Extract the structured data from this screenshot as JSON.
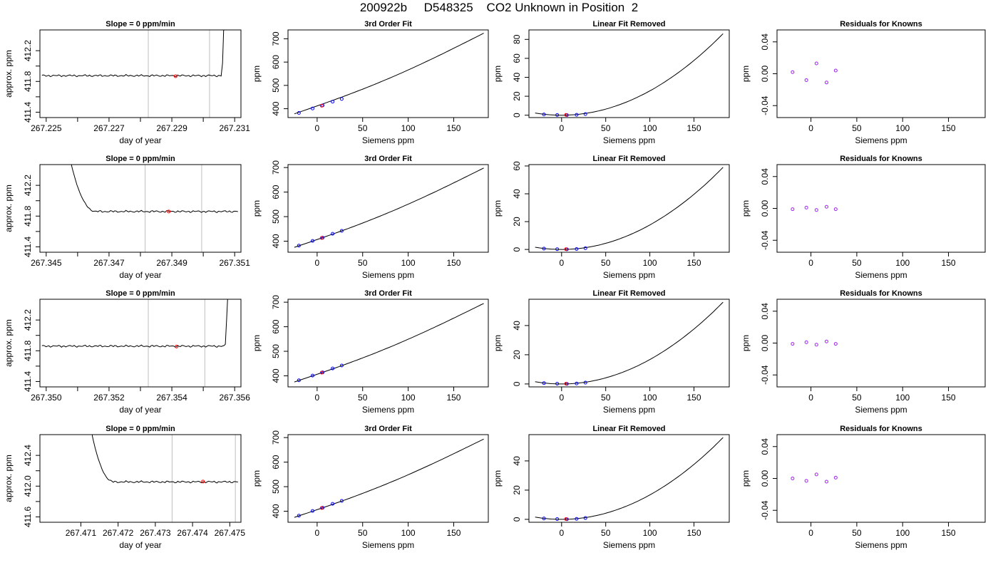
{
  "title": "200922b     D548325    CO2 Unknown in Position  2",
  "colors": {
    "known_point": "#0000ff",
    "unknown_point": "#ff0000",
    "residual_point": "#a020f0",
    "curve": "#000000",
    "marker_line": "#bebebe"
  },
  "chart_data": [
    {
      "row": 1,
      "type": "line",
      "title": "Slope =  0  ppm/min",
      "xlabel": "day of year",
      "ylabel": "approx. ppm",
      "xlim": [
        267.2248,
        267.2312
      ],
      "ylim": [
        411.33,
        412.47
      ],
      "xticks": [
        267.225,
        267.226,
        267.227,
        267.228,
        267.229,
        267.23,
        267.231
      ],
      "xticklabels": [
        "267.225",
        "",
        "267.227",
        "",
        "267.229",
        "",
        "267.231"
      ],
      "yticks": [
        411.4,
        411.6,
        411.8,
        412.0,
        412.2
      ],
      "yticklabels": [
        "411.4",
        "",
        "411.8",
        "",
        "412.2"
      ],
      "baseline": 411.875,
      "start": 411.88,
      "transition": "spike-up",
      "transition_x": [
        267.2306,
        267.2307
      ],
      "vlines": [
        267.22825,
        267.2302
      ],
      "marker": {
        "x": 267.22912,
        "y": 411.868
      }
    },
    {
      "row": 1,
      "type": "line",
      "title": "3rd Order Fit",
      "xlabel": "Siemens ppm",
      "ylabel": "ppm",
      "xlim": [
        -32,
        188
      ],
      "ylim": [
        362,
        738
      ],
      "xticks": [
        0,
        50,
        100,
        150
      ],
      "xticklabels": [
        "0",
        "50",
        "100",
        "150"
      ],
      "yticks": [
        400,
        500,
        600,
        700
      ],
      "yticklabels": [
        "400",
        "500",
        "600",
        "700"
      ],
      "curve_x": [
        -25,
        183
      ],
      "curve_y": [
        378,
        724
      ],
      "knowns": [
        {
          "x": -20,
          "y": 382
        },
        {
          "x": -5,
          "y": 401
        },
        {
          "x": 6,
          "y": 414
        },
        {
          "x": 17,
          "y": 430
        },
        {
          "x": 27,
          "y": 442
        }
      ],
      "unknown": {
        "x": 5,
        "y": 413
      }
    },
    {
      "row": 1,
      "type": "line",
      "title": "Linear Fit Removed",
      "xlabel": "Siemens ppm",
      "ylabel": "ppm",
      "xlim": [
        -37,
        190
      ],
      "ylim": [
        -2.5,
        90
      ],
      "xticks": [
        0,
        50,
        100,
        150
      ],
      "xticklabels": [
        "0",
        "50",
        "100",
        "150"
      ],
      "yticks": [
        0,
        20,
        40,
        60,
        80
      ],
      "yticklabels": [
        "0",
        "20",
        "40",
        "60",
        "80"
      ],
      "curve_x": [
        -30,
        183
      ],
      "curve_min_x": 0,
      "curve_min_y": 0,
      "curve_end_y": 86,
      "knowns": [
        {
          "x": -20,
          "y": 0.8
        },
        {
          "x": -5,
          "y": 0.2
        },
        {
          "x": 6,
          "y": 0.1
        },
        {
          "x": 17,
          "y": 0.4
        },
        {
          "x": 27,
          "y": 1.2
        }
      ],
      "unknown": {
        "x": 5,
        "y": 0.3
      }
    },
    {
      "row": 1,
      "type": "scatter",
      "title": "Residuals for Knowns",
      "xlabel": "Siemens ppm",
      "ylabel": "ppm",
      "xlim": [
        -37,
        190
      ],
      "ylim": [
        -0.055,
        0.055
      ],
      "xticks": [
        0,
        50,
        100,
        150
      ],
      "xticklabels": [
        "0",
        "50",
        "100",
        "150"
      ],
      "yticks": [
        -0.04,
        0.0,
        0.04
      ],
      "yticklabels": [
        "-0.04",
        "0.00",
        "0.04"
      ],
      "points": [
        {
          "x": -20,
          "y": 0.002
        },
        {
          "x": -5,
          "y": -0.008
        },
        {
          "x": 6,
          "y": 0.013
        },
        {
          "x": 17,
          "y": -0.011
        },
        {
          "x": 27,
          "y": 0.004
        }
      ]
    },
    {
      "row": 2,
      "type": "line",
      "title": "Slope =  0  ppm/min",
      "xlabel": "day of year",
      "ylabel": "approx. ppm",
      "xlim": [
        267.3448,
        267.3512
      ],
      "ylim": [
        411.33,
        412.47
      ],
      "xticks": [
        267.345,
        267.346,
        267.347,
        267.348,
        267.349,
        267.35,
        267.351
      ],
      "xticklabels": [
        "267.345",
        "",
        "267.347",
        "",
        "267.349",
        "",
        "267.351"
      ],
      "yticks": [
        411.4,
        411.6,
        411.8,
        412.0,
        412.2
      ],
      "yticklabels": [
        "411.4",
        "",
        "411.8",
        "",
        "412.2"
      ],
      "baseline": 411.86,
      "start": 412.47,
      "transition": "decay-down",
      "transition_x": [
        267.3458,
        267.3466
      ],
      "vlines": [
        267.34815,
        267.34995
      ],
      "marker": {
        "x": 267.3489,
        "y": 411.86
      }
    },
    {
      "row": 2,
      "type": "line",
      "title": "3rd Order Fit",
      "xlabel": "Siemens ppm",
      "ylabel": "ppm",
      "xlim": [
        -32,
        188
      ],
      "ylim": [
        355,
        712
      ],
      "xticks": [
        0,
        50,
        100,
        150
      ],
      "xticklabels": [
        "0",
        "50",
        "100",
        "150"
      ],
      "yticks": [
        400,
        500,
        600,
        700
      ],
      "yticklabels": [
        "400",
        "500",
        "600",
        "700"
      ],
      "curve_x": [
        -25,
        183
      ],
      "curve_y": [
        375,
        698
      ],
      "knowns": [
        {
          "x": -20,
          "y": 382
        },
        {
          "x": -5,
          "y": 401
        },
        {
          "x": 6,
          "y": 414
        },
        {
          "x": 17,
          "y": 430
        },
        {
          "x": 27,
          "y": 442
        }
      ],
      "unknown": {
        "x": 5,
        "y": 413
      }
    },
    {
      "row": 2,
      "type": "line",
      "title": "Linear Fit Removed",
      "xlabel": "Siemens ppm",
      "ylabel": "ppm",
      "xlim": [
        -37,
        190
      ],
      "ylim": [
        -2,
        61
      ],
      "xticks": [
        0,
        50,
        100,
        150
      ],
      "xticklabels": [
        "0",
        "50",
        "100",
        "150"
      ],
      "yticks": [
        0,
        20,
        40,
        60
      ],
      "yticklabels": [
        "0",
        "20",
        "40",
        "60"
      ],
      "curve_x": [
        -30,
        183
      ],
      "curve_min_x": 0,
      "curve_min_y": 0,
      "curve_end_y": 59,
      "knowns": [
        {
          "x": -20,
          "y": 0.6
        },
        {
          "x": -5,
          "y": 0.2
        },
        {
          "x": 6,
          "y": 0.1
        },
        {
          "x": 17,
          "y": 0.3
        },
        {
          "x": 27,
          "y": 0.9
        }
      ],
      "unknown": {
        "x": 5,
        "y": 0.2
      }
    },
    {
      "row": 2,
      "type": "scatter",
      "title": "Residuals for Knowns",
      "xlabel": "Siemens ppm",
      "ylabel": "ppm",
      "xlim": [
        -37,
        190
      ],
      "ylim": [
        -0.055,
        0.055
      ],
      "xticks": [
        0,
        50,
        100,
        150
      ],
      "xticklabels": [
        "0",
        "50",
        "100",
        "150"
      ],
      "yticks": [
        -0.04,
        0.0,
        0.04
      ],
      "yticklabels": [
        "-0.04",
        "0.00",
        "0.04"
      ],
      "points": [
        {
          "x": -20,
          "y": -0.001
        },
        {
          "x": -5,
          "y": 0.001
        },
        {
          "x": 6,
          "y": -0.002
        },
        {
          "x": 17,
          "y": 0.002
        },
        {
          "x": 27,
          "y": -0.001
        }
      ]
    },
    {
      "row": 3,
      "type": "line",
      "title": "Slope =  0  ppm/min",
      "xlabel": "day of year",
      "ylabel": "approx. ppm",
      "xlim": [
        267.3498,
        267.3562
      ],
      "ylim": [
        411.33,
        412.47
      ],
      "xticks": [
        267.35,
        267.351,
        267.352,
        267.353,
        267.354,
        267.355,
        267.356
      ],
      "xticklabels": [
        "267.350",
        "",
        "267.352",
        "",
        "267.354",
        "",
        "267.356"
      ],
      "yticks": [
        411.4,
        411.6,
        411.8,
        412.0,
        412.2
      ],
      "yticklabels": [
        "411.4",
        "",
        "411.8",
        "",
        "412.2"
      ],
      "baseline": 411.86,
      "start": 411.86,
      "transition": "spike-up",
      "transition_x": [
        267.3557,
        267.35585
      ],
      "vlines": [
        267.35325,
        267.35505
      ],
      "marker": {
        "x": 267.35415,
        "y": 411.855
      }
    },
    {
      "row": 3,
      "type": "line",
      "title": "3rd Order Fit",
      "xlabel": "Siemens ppm",
      "ylabel": "ppm",
      "xlim": [
        -32,
        188
      ],
      "ylim": [
        355,
        712
      ],
      "xticks": [
        0,
        50,
        100,
        150
      ],
      "xticklabels": [
        "0",
        "50",
        "100",
        "150"
      ],
      "yticks": [
        400,
        500,
        600,
        700
      ],
      "yticklabels": [
        "400",
        "500",
        "600",
        "700"
      ],
      "curve_x": [
        -25,
        183
      ],
      "curve_y": [
        375,
        695
      ],
      "knowns": [
        {
          "x": -20,
          "y": 382
        },
        {
          "x": -5,
          "y": 401
        },
        {
          "x": 6,
          "y": 414
        },
        {
          "x": 17,
          "y": 430
        },
        {
          "x": 27,
          "y": 442
        }
      ],
      "unknown": {
        "x": 5,
        "y": 413
      }
    },
    {
      "row": 3,
      "type": "line",
      "title": "Linear Fit Removed",
      "xlabel": "Siemens ppm",
      "ylabel": "ppm",
      "xlim": [
        -37,
        190
      ],
      "ylim": [
        -2,
        58
      ],
      "xticks": [
        0,
        50,
        100,
        150
      ],
      "xticklabels": [
        "0",
        "50",
        "100",
        "150"
      ],
      "yticks": [
        0,
        20,
        40
      ],
      "yticklabels": [
        "0",
        "20",
        "40"
      ],
      "curve_x": [
        -30,
        183
      ],
      "curve_min_x": 0,
      "curve_min_y": 0,
      "curve_end_y": 56,
      "knowns": [
        {
          "x": -20,
          "y": 0.6
        },
        {
          "x": -5,
          "y": 0.2
        },
        {
          "x": 6,
          "y": 0.1
        },
        {
          "x": 17,
          "y": 0.3
        },
        {
          "x": 27,
          "y": 0.9
        }
      ],
      "unknown": {
        "x": 5,
        "y": 0.2
      }
    },
    {
      "row": 3,
      "type": "scatter",
      "title": "Residuals for Knowns",
      "xlabel": "Siemens ppm",
      "ylabel": "ppm",
      "xlim": [
        -37,
        190
      ],
      "ylim": [
        -0.055,
        0.055
      ],
      "xticks": [
        0,
        50,
        100,
        150
      ],
      "xticklabels": [
        "0",
        "50",
        "100",
        "150"
      ],
      "yticks": [
        -0.04,
        0.0,
        0.04
      ],
      "yticklabels": [
        "-0.04",
        "0.00",
        "0.04"
      ],
      "points": [
        {
          "x": -20,
          "y": -0.001
        },
        {
          "x": -5,
          "y": 0.001
        },
        {
          "x": 6,
          "y": -0.002
        },
        {
          "x": 17,
          "y": 0.002
        },
        {
          "x": 27,
          "y": -0.001
        }
      ]
    },
    {
      "row": 4,
      "type": "line",
      "title": "Slope =  0  ppm/min",
      "xlabel": "day of year",
      "ylabel": "approx. ppm",
      "xlim": [
        267.4699,
        267.4753
      ],
      "ylim": [
        411.53,
        412.67
      ],
      "xticks": [
        267.471,
        267.472,
        267.473,
        267.474,
        267.475
      ],
      "xticklabels": [
        "267.471",
        "267.472",
        "267.473",
        "267.474",
        "267.475"
      ],
      "yticks": [
        411.6,
        411.8,
        412.0,
        412.2,
        412.4
      ],
      "yticklabels": [
        "411.6",
        "",
        "412.0",
        "",
        "412.4"
      ],
      "baseline": 412.055,
      "start": 412.67,
      "transition": "decay-down",
      "transition_x": [
        267.4713,
        267.4719
      ],
      "vlines": [
        267.47345,
        267.47515
      ],
      "marker": {
        "x": 267.47428,
        "y": 412.06
      }
    },
    {
      "row": 4,
      "type": "line",
      "title": "3rd Order Fit",
      "xlabel": "Siemens ppm",
      "ylabel": "ppm",
      "xlim": [
        -32,
        188
      ],
      "ylim": [
        355,
        712
      ],
      "xticks": [
        0,
        50,
        100,
        150
      ],
      "xticklabels": [
        "0",
        "50",
        "100",
        "150"
      ],
      "yticks": [
        400,
        500,
        600,
        700
      ],
      "yticklabels": [
        "400",
        "500",
        "600",
        "700"
      ],
      "curve_x": [
        -25,
        183
      ],
      "curve_y": [
        375,
        694
      ],
      "knowns": [
        {
          "x": -20,
          "y": 382
        },
        {
          "x": -5,
          "y": 401
        },
        {
          "x": 6,
          "y": 414
        },
        {
          "x": 17,
          "y": 430
        },
        {
          "x": 27,
          "y": 442
        }
      ],
      "unknown": {
        "x": 5,
        "y": 413
      }
    },
    {
      "row": 4,
      "type": "line",
      "title": "Linear Fit Removed",
      "xlabel": "Siemens ppm",
      "ylabel": "ppm",
      "xlim": [
        -37,
        190
      ],
      "ylim": [
        -2,
        58
      ],
      "xticks": [
        0,
        50,
        100,
        150
      ],
      "xticklabels": [
        "0",
        "50",
        "100",
        "150"
      ],
      "yticks": [
        0,
        20,
        40
      ],
      "yticklabels": [
        "0",
        "20",
        "40"
      ],
      "curve_x": [
        -30,
        183
      ],
      "curve_min_x": 0,
      "curve_min_y": 0,
      "curve_end_y": 56,
      "knowns": [
        {
          "x": -20,
          "y": 0.6
        },
        {
          "x": -5,
          "y": 0.2
        },
        {
          "x": 6,
          "y": 0.1
        },
        {
          "x": 17,
          "y": 0.3
        },
        {
          "x": 27,
          "y": 0.9
        }
      ],
      "unknown": {
        "x": 5,
        "y": 0.2
      }
    },
    {
      "row": 4,
      "type": "scatter",
      "title": "Residuals for Knowns",
      "xlabel": "Siemens ppm",
      "ylabel": "ppm",
      "xlim": [
        -37,
        190
      ],
      "ylim": [
        -0.055,
        0.055
      ],
      "xticks": [
        0,
        50,
        100,
        150
      ],
      "xticklabels": [
        "0",
        "50",
        "100",
        "150"
      ],
      "yticks": [
        -0.04,
        0.0,
        0.04
      ],
      "yticklabels": [
        "-0.04",
        "0.00",
        "0.04"
      ],
      "points": [
        {
          "x": -20,
          "y": 0.0
        },
        {
          "x": -5,
          "y": -0.003
        },
        {
          "x": 6,
          "y": 0.005
        },
        {
          "x": 17,
          "y": -0.004
        },
        {
          "x": 27,
          "y": 0.001
        }
      ]
    }
  ]
}
